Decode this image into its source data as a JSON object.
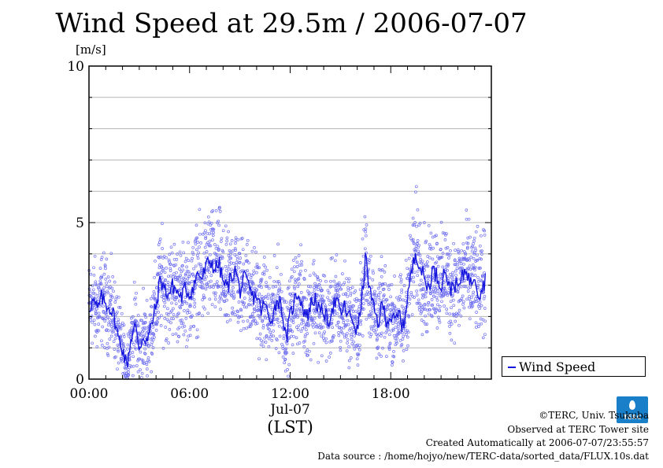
{
  "header": {
    "title": "Wind Speed at 29.5m / 2006-07-07",
    "unit_label": "[m/s]"
  },
  "chart_data": {
    "type": "scatter",
    "title": "Wind Speed at 29.5m / 2006-07-07",
    "ylabel": "[m/s]",
    "xlabel": "Jul-07",
    "xlabel2": "(LST)",
    "ylim": [
      0,
      10
    ],
    "yticks": [
      "0",
      "5",
      "10"
    ],
    "xticks": [
      "00:00",
      "06:00",
      "12:00",
      "18:00"
    ],
    "xlim_hours": [
      0,
      24
    ],
    "grid": true,
    "legend": {
      "label": "Wind Speed",
      "placement": "right"
    },
    "colors": {
      "series": "#1515dd",
      "scatter": "#6f6ff0"
    },
    "series": [
      {
        "name": "Wind Speed",
        "x_hours": [
          0,
          0.25,
          0.5,
          0.75,
          1,
          1.25,
          1.5,
          1.75,
          2,
          2.25,
          2.5,
          2.75,
          3,
          3.25,
          3.5,
          3.75,
          4,
          4.25,
          4.5,
          4.75,
          5,
          5.25,
          5.5,
          5.75,
          6,
          6.25,
          6.5,
          6.75,
          7,
          7.25,
          7.5,
          7.75,
          8,
          8.25,
          8.5,
          8.75,
          9,
          9.25,
          9.5,
          9.75,
          10,
          10.25,
          10.5,
          10.75,
          11,
          11.25,
          11.5,
          11.75,
          12,
          12.25,
          12.5,
          12.75,
          13,
          13.25,
          13.5,
          13.75,
          14,
          14.25,
          14.5,
          14.75,
          15,
          15.25,
          15.5,
          15.75,
          16,
          16.25,
          16.5,
          16.75,
          17,
          17.25,
          17.5,
          17.75,
          18,
          18.25,
          18.5,
          18.75,
          19,
          19.25,
          19.5,
          19.75,
          20,
          20.25,
          20.5,
          20.75,
          21,
          21.25,
          21.5,
          21.75,
          22,
          22.25,
          22.5,
          22.75,
          23,
          23.25,
          23.5,
          23.75
        ],
        "values": [
          2.3,
          2.5,
          2.2,
          2.6,
          2.4,
          2.3,
          2.0,
          1.3,
          1.0,
          0.4,
          1.3,
          1.7,
          1.0,
          1.4,
          1.2,
          1.8,
          2.3,
          3.2,
          2.9,
          2.7,
          3.0,
          2.8,
          2.6,
          2.9,
          2.7,
          3.0,
          3.4,
          3.2,
          3.6,
          3.8,
          3.5,
          3.7,
          3.1,
          2.9,
          3.3,
          3.5,
          2.8,
          3.2,
          3.0,
          2.6,
          2.7,
          2.2,
          2.4,
          1.9,
          2.1,
          2.6,
          2.3,
          1.2,
          2.0,
          2.5,
          2.8,
          2.3,
          2.0,
          2.4,
          2.6,
          2.1,
          2.2,
          1.8,
          2.3,
          2.5,
          2.1,
          2.3,
          2.0,
          1.9,
          1.5,
          2.4,
          3.9,
          2.8,
          2.2,
          1.8,
          2.4,
          1.9,
          2.0,
          1.8,
          2.1,
          1.6,
          2.7,
          3.4,
          4.1,
          3.6,
          3.2,
          2.9,
          3.5,
          3.3,
          3.0,
          3.6,
          2.8,
          3.1,
          2.9,
          3.2,
          3.6,
          3.0,
          3.4,
          2.7,
          3.0,
          3.3
        ]
      }
    ]
  },
  "footer": {
    "copyright": "©TERC, Univ. Tsukuba",
    "observed": "Observed at TERC Tower site",
    "created": "Created Automatically at 2006-07-07/23:55:57",
    "source": "Data source : /home/hojyo/new/TERC-data/sorted_data/FLUX.10s.dat",
    "logo_text": "TERC"
  }
}
